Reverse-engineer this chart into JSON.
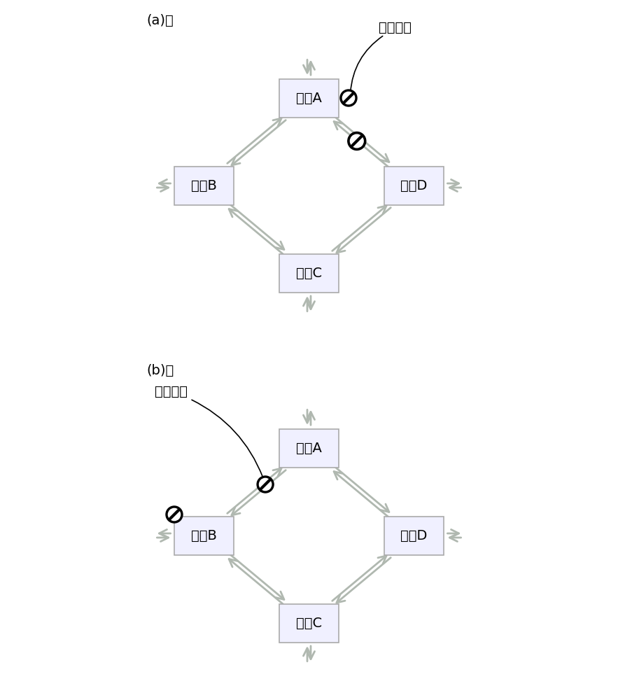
{
  "bg_color": "#ffffff",
  "node_box_color": "#f0f0ff",
  "node_box_edge": "#aaaaaa",
  "arrow_color": "#b0b8b0",
  "label_a": "节点A",
  "label_b": "节点B",
  "label_c": "节点C",
  "label_d": "节点D",
  "fig_a_label": "(a)：",
  "fig_b_label": "(b)：",
  "backup_link": "备用链路",
  "fault_link": "故障链路",
  "font_size": 14,
  "small_font_size": 12
}
